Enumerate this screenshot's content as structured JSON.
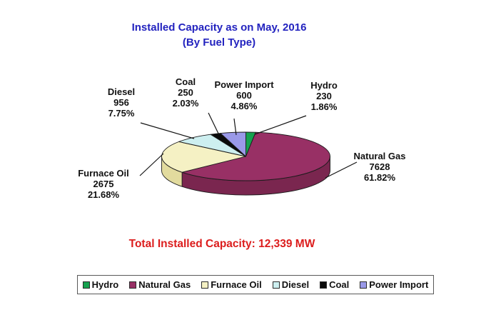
{
  "chart_data": {
    "type": "pie",
    "projection": "3d",
    "title": "Installed Capacity as on May, 2016",
    "subtitle": "(By Fuel Type)",
    "title_color": "#2323BF",
    "footer": {
      "text": "Total Installed Capacity: 12,339 MW",
      "color": "#DC1D1D"
    },
    "total_value": "12,339",
    "unit": "MW",
    "slices": [
      {
        "label": "Hydro",
        "value": 230,
        "pct": "1.86%",
        "color": "#16A24F",
        "side_color": "#0E7A3A"
      },
      {
        "label": "Natural Gas",
        "value": 7628,
        "pct": "61.82%",
        "color": "#983065",
        "side_color": "#7A264F"
      },
      {
        "label": "Furnace Oil",
        "value": 2675,
        "pct": "21.68%",
        "color": "#F5F1C4",
        "side_color": "#E2DB9E"
      },
      {
        "label": "Diesel",
        "value": 956,
        "pct": "7.75%",
        "color": "#CDEFF0",
        "side_color": "#A6D3D8"
      },
      {
        "label": "Coal",
        "value": 250,
        "pct": "2.03%",
        "color": "#0A0A0A",
        "side_color": "#000000"
      },
      {
        "label": "Power Import",
        "value": 600,
        "pct": "4.86%",
        "color": "#9A99E8",
        "side_color": "#7372C2"
      }
    ],
    "legend": {
      "position": "bottom",
      "entries": [
        "Hydro",
        "Natural Gas",
        "Furnace Oil",
        "Diesel",
        "Coal",
        "Power Import"
      ]
    }
  }
}
